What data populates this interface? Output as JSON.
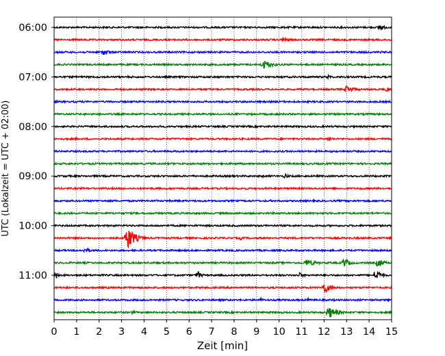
{
  "chart_data": {
    "type": "line",
    "subtype": "helicorder-seismogram",
    "xlabel": "Zeit  [min]",
    "ylabel": "UTC (Lokalzeit = UTC + 02:00)",
    "xlim": [
      0,
      15
    ],
    "xticks": [
      "0",
      "1",
      "2",
      "3",
      "4",
      "5",
      "6",
      "7",
      "8",
      "9",
      "10",
      "11",
      "12",
      "13",
      "14",
      "15"
    ],
    "y_tick_labels": [
      "06:00",
      "07:00",
      "08:00",
      "09:00",
      "10:00",
      "11:00"
    ],
    "y_tick_line_index": [
      0,
      4,
      8,
      12,
      16,
      20
    ],
    "grid": "vertical dotted lines at each minute",
    "trace_colors": [
      "#000000",
      "#ff0000",
      "#0000ff",
      "#008000"
    ],
    "line_minutes": 15,
    "traces": [
      {
        "start": "06:00",
        "events": [
          {
            "t": 14.5,
            "amp": 0.55,
            "dur": 0.6
          }
        ]
      },
      {
        "start": "06:15",
        "events": [
          {
            "t": 10.2,
            "amp": 0.45,
            "dur": 0.8
          }
        ]
      },
      {
        "start": "06:30",
        "events": [
          {
            "t": 2.2,
            "amp": 0.45,
            "dur": 0.9
          }
        ]
      },
      {
        "start": "06:45",
        "events": [
          {
            "t": 9.3,
            "amp": 0.7,
            "dur": 1.3
          }
        ]
      },
      {
        "start": "07:00",
        "events": [
          {
            "t": 12.2,
            "amp": 0.35,
            "dur": 0.5
          }
        ]
      },
      {
        "start": "07:15",
        "events": [
          {
            "t": 13.0,
            "amp": 0.55,
            "dur": 1.2
          },
          {
            "t": 14.8,
            "amp": 0.45,
            "dur": 0.4
          }
        ]
      },
      {
        "start": "07:30",
        "events": []
      },
      {
        "start": "07:45",
        "events": []
      },
      {
        "start": "08:00",
        "events": []
      },
      {
        "start": "08:15",
        "events": [
          {
            "t": 12.2,
            "amp": 0.4,
            "dur": 0.7
          }
        ]
      },
      {
        "start": "08:30",
        "events": []
      },
      {
        "start": "08:45",
        "events": []
      },
      {
        "start": "09:00",
        "events": [
          {
            "t": 10.3,
            "amp": 0.45,
            "dur": 0.3
          },
          {
            "t": 9.3,
            "amp": 0.25,
            "dur": 0.3
          }
        ]
      },
      {
        "start": "09:15",
        "events": []
      },
      {
        "start": "09:30",
        "events": []
      },
      {
        "start": "09:45",
        "events": []
      },
      {
        "start": "10:00",
        "events": []
      },
      {
        "start": "10:15",
        "events": [
          {
            "t": 3.25,
            "amp": 1.8,
            "dur": 1.0
          },
          {
            "t": 8.3,
            "amp": 0.3,
            "dur": 0.4
          }
        ]
      },
      {
        "start": "10:30",
        "events": [
          {
            "t": 1.4,
            "amp": 0.5,
            "dur": 0.6
          }
        ]
      },
      {
        "start": "10:45",
        "events": [
          {
            "t": 11.2,
            "amp": 0.55,
            "dur": 1.4
          },
          {
            "t": 12.9,
            "amp": 0.7,
            "dur": 0.8
          },
          {
            "t": 14.4,
            "amp": 0.65,
            "dur": 0.9
          }
        ]
      },
      {
        "start": "11:00",
        "events": [
          {
            "t": 0.1,
            "amp": 0.5,
            "dur": 0.3
          },
          {
            "t": 6.4,
            "amp": 0.6,
            "dur": 0.5
          },
          {
            "t": 10.9,
            "amp": 0.4,
            "dur": 0.8
          },
          {
            "t": 14.3,
            "amp": 1.0,
            "dur": 0.7
          }
        ]
      },
      {
        "start": "11:15",
        "events": [
          {
            "t": 12.0,
            "amp": 0.85,
            "dur": 1.0
          }
        ]
      },
      {
        "start": "11:30",
        "events": [
          {
            "t": 9.2,
            "amp": 0.3,
            "dur": 0.4
          },
          {
            "t": 11.3,
            "amp": 0.25,
            "dur": 0.6
          }
        ]
      },
      {
        "start": "11:45",
        "events": [
          {
            "t": 12.2,
            "amp": 0.9,
            "dur": 1.2
          },
          {
            "t": 3.5,
            "amp": 0.3,
            "dur": 0.4
          }
        ]
      }
    ]
  }
}
